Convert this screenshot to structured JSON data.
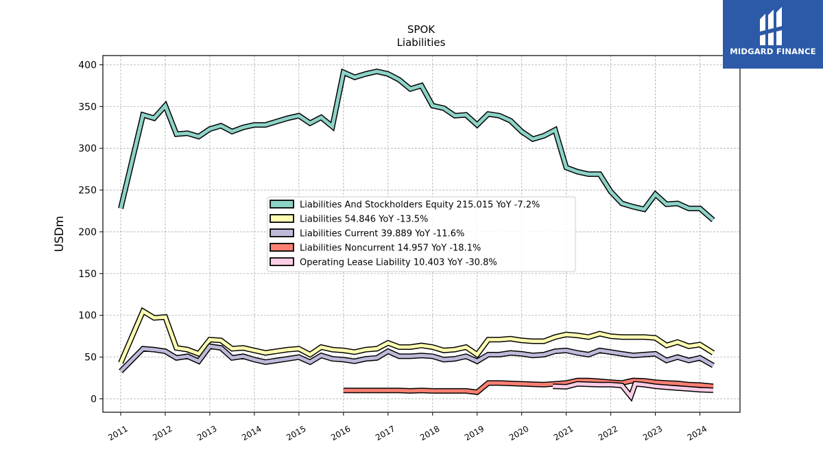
{
  "brand": {
    "name": "MIDGARD FINANCE",
    "bg_color": "#2c5aa8"
  },
  "chart_data": {
    "type": "line",
    "title": "SPOK",
    "subtitle": "Liabilities",
    "ylabel": "USDm",
    "xlabel": "",
    "xlim": [
      2010.6,
      2024.9
    ],
    "ylim": [
      -16,
      411
    ],
    "yticks": [
      0,
      50,
      100,
      150,
      200,
      250,
      300,
      350,
      400
    ],
    "xticks": [
      "2011",
      "2012",
      "2013",
      "2014",
      "2015",
      "2016",
      "2017",
      "2018",
      "2019",
      "2020",
      "2021",
      "2022",
      "2023",
      "2024"
    ],
    "grid": true,
    "legend_position": "center",
    "series": [
      {
        "name": "Liabilities And Stockholders Equity",
        "legend": "Liabilities And Stockholders Equity  215.015 YoY -7.2%",
        "color": "#8dd3c7",
        "x": [
          2011.0,
          2011.5,
          2011.75,
          2012.0,
          2012.25,
          2012.5,
          2012.75,
          2013.0,
          2013.25,
          2013.5,
          2013.75,
          2014.0,
          2014.25,
          2014.5,
          2014.75,
          2015.0,
          2015.25,
          2015.5,
          2015.75,
          2016.0,
          2016.25,
          2016.5,
          2016.75,
          2017.0,
          2017.25,
          2017.5,
          2017.75,
          2018.0,
          2018.25,
          2018.5,
          2018.75,
          2019.0,
          2019.25,
          2019.5,
          2019.75,
          2020.0,
          2020.25,
          2020.5,
          2020.75,
          2021.0,
          2021.25,
          2021.5,
          2021.75,
          2022.0,
          2022.25,
          2022.5,
          2022.75,
          2023.0,
          2023.25,
          2023.5,
          2023.75,
          2024.0,
          2024.3
        ],
        "y": [
          228,
          340,
          336,
          351,
          317,
          318,
          314,
          323,
          327,
          320,
          325,
          328,
          328,
          332,
          336,
          339,
          330,
          337,
          326,
          391,
          385,
          389,
          392,
          389,
          382,
          371,
          375,
          351,
          348,
          339,
          340,
          328,
          341,
          339,
          333,
          320,
          311,
          315,
          322,
          277,
          272,
          269,
          269,
          248,
          234,
          230,
          227,
          245,
          233,
          234,
          228,
          228,
          214
        ]
      },
      {
        "name": "Liabilities",
        "legend": "Liabilities  54.846 YoY -13.5%",
        "color": "#ffffb3",
        "x": [
          2011.0,
          2011.5,
          2011.75,
          2012.0,
          2012.25,
          2012.5,
          2012.75,
          2013.0,
          2013.25,
          2013.5,
          2013.75,
          2014.0,
          2014.25,
          2014.5,
          2014.75,
          2015.0,
          2015.25,
          2015.5,
          2015.75,
          2016.0,
          2016.25,
          2016.5,
          2016.75,
          2017.0,
          2017.25,
          2017.5,
          2017.75,
          2018.0,
          2018.25,
          2018.5,
          2018.75,
          2019.0,
          2019.25,
          2019.5,
          2019.75,
          2020.0,
          2020.25,
          2020.5,
          2020.75,
          2021.0,
          2021.25,
          2021.5,
          2021.75,
          2022.0,
          2022.25,
          2022.5,
          2022.75,
          2023.0,
          2023.25,
          2023.5,
          2023.75,
          2024.0,
          2024.3
        ],
        "y": [
          43,
          105,
          97,
          98,
          61,
          59,
          54,
          71,
          70,
          60,
          61,
          58,
          55,
          57,
          59,
          60,
          53,
          62,
          59,
          58,
          56,
          59,
          60,
          67,
          62,
          62,
          64,
          62,
          58,
          59,
          62,
          53,
          71,
          71,
          72,
          70,
          69,
          69,
          74,
          77,
          76,
          74,
          78,
          75,
          74,
          74,
          74,
          73,
          64,
          68,
          63,
          65,
          55
        ]
      },
      {
        "name": "Liabilities Current",
        "legend": "Liabilities Current  39.889 YoY -11.6%",
        "color": "#bebada",
        "x": [
          2011.0,
          2011.5,
          2011.75,
          2012.0,
          2012.25,
          2012.5,
          2012.75,
          2013.0,
          2013.25,
          2013.5,
          2013.75,
          2014.0,
          2014.25,
          2014.5,
          2014.75,
          2015.0,
          2015.25,
          2015.5,
          2015.75,
          2016.0,
          2016.25,
          2016.5,
          2016.75,
          2017.0,
          2017.25,
          2017.5,
          2017.75,
          2018.0,
          2018.25,
          2018.5,
          2018.75,
          2019.0,
          2019.25,
          2019.5,
          2019.75,
          2020.0,
          2020.25,
          2020.5,
          2020.75,
          2021.0,
          2021.25,
          2021.5,
          2021.75,
          2022.0,
          2022.25,
          2022.5,
          2022.75,
          2023.0,
          2023.25,
          2023.5,
          2023.75,
          2024.0,
          2024.3
        ],
        "y": [
          33,
          60,
          59,
          57,
          49,
          51,
          45,
          63,
          61,
          49,
          51,
          47,
          44,
          46,
          48,
          50,
          44,
          52,
          48,
          47,
          45,
          48,
          49,
          57,
          51,
          51,
          52,
          51,
          47,
          48,
          51,
          45,
          53,
          53,
          55,
          54,
          52,
          53,
          57,
          58,
          55,
          53,
          58,
          56,
          54,
          52,
          53,
          54,
          46,
          50,
          46,
          49,
          40
        ]
      },
      {
        "name": "Liabilities Noncurrent",
        "legend": "Liabilities Noncurrent  14.957 YoY -18.1%",
        "color": "#fb8072",
        "x": [
          2016.0,
          2016.25,
          2016.5,
          2016.75,
          2017.0,
          2017.25,
          2017.5,
          2017.75,
          2018.0,
          2018.25,
          2018.5,
          2018.75,
          2019.0,
          2019.25,
          2019.5,
          2019.75,
          2020.0,
          2020.25,
          2020.5,
          2020.75,
          2021.0,
          2021.25,
          2021.5,
          2021.75,
          2022.0,
          2022.25,
          2022.5,
          2022.75,
          2023.0,
          2023.25,
          2023.5,
          2023.75,
          2024.0,
          2024.3
        ],
        "y": [
          10,
          10,
          10,
          10,
          10,
          10,
          9.5,
          10,
          9.5,
          9.5,
          9.5,
          9.5,
          8,
          19,
          19,
          18.5,
          18,
          17.5,
          17,
          18,
          19,
          22,
          22,
          21,
          20,
          19,
          22,
          21.5,
          20,
          19,
          18.5,
          17,
          16.5,
          15
        ]
      },
      {
        "name": "Operating Lease Liability",
        "legend": "Operating Lease Liability  10.403 YoY -30.8%",
        "color": "#fccde5",
        "x": [
          2020.7,
          2020.75,
          2021.0,
          2021.25,
          2021.5,
          2021.75,
          2022.0,
          2022.25,
          2022.45,
          2022.55,
          2022.75,
          2023.0,
          2023.25,
          2023.5,
          2023.75,
          2024.0,
          2024.3
        ],
        "y": [
          15,
          15,
          14.5,
          18,
          17.5,
          17,
          17,
          16,
          3,
          18,
          17,
          15,
          14,
          13,
          12,
          11,
          10.4
        ]
      }
    ]
  }
}
